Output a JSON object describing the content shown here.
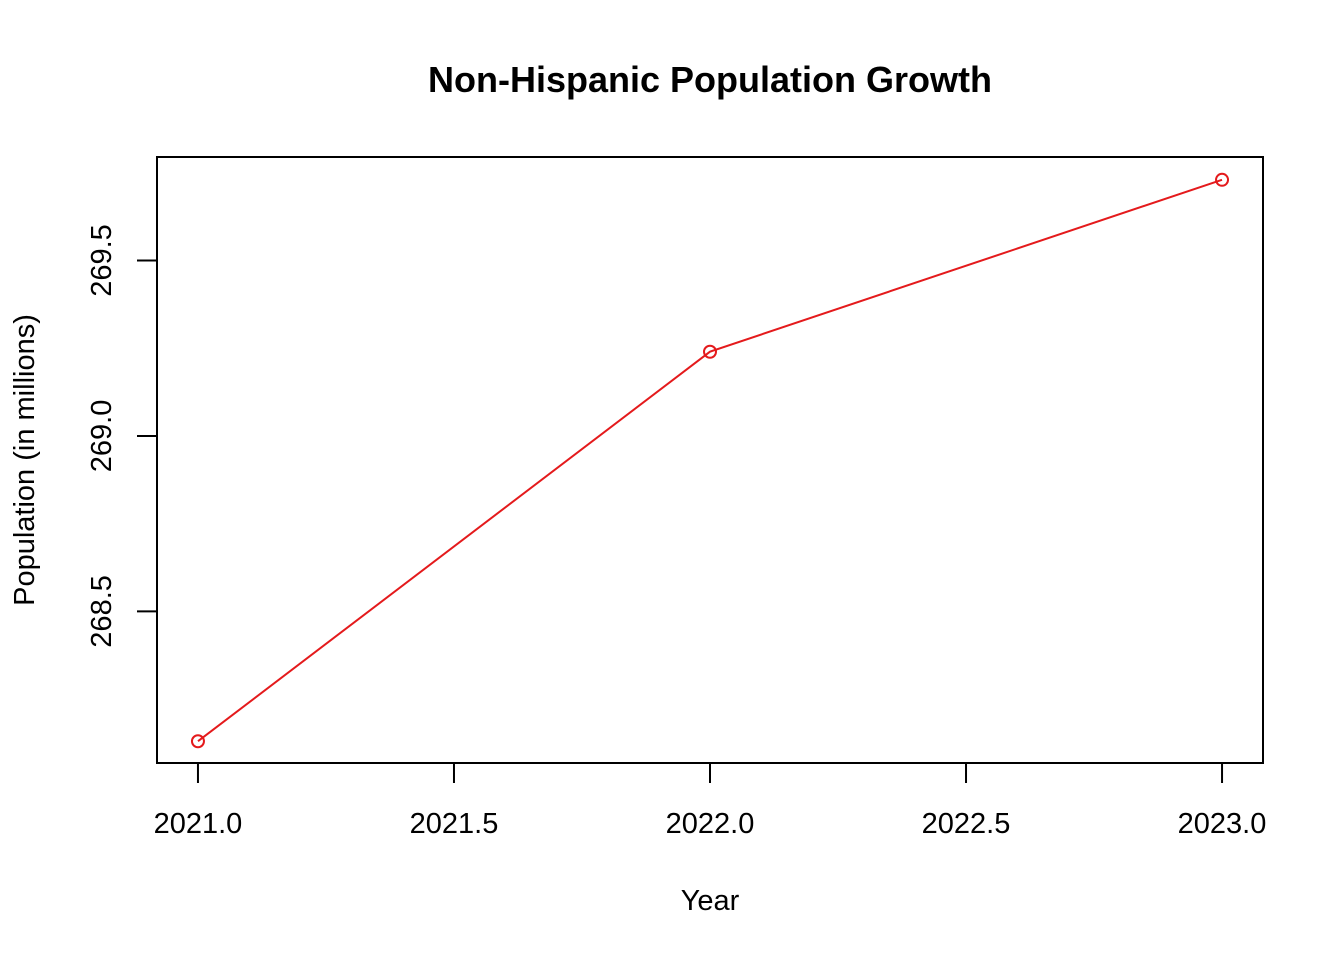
{
  "chart_data": {
    "type": "line",
    "title": "Non-Hispanic Population Growth",
    "xlabel": "Year",
    "ylabel": "Population (in millions)",
    "x": [
      2021,
      2022,
      2023
    ],
    "series": [
      {
        "values": [
          268.13,
          269.24,
          269.73
        ],
        "color": "#e41a1c",
        "marker": "open-circle"
      }
    ],
    "x_ticks": [
      "2021.0",
      "2021.5",
      "2022.0",
      "2022.5",
      "2023.0"
    ],
    "y_ticks": [
      "268.5",
      "269.0",
      "269.5"
    ],
    "xlim": [
      2020.92,
      2023.08
    ],
    "ylim": [
      268.068,
      269.795
    ],
    "grid": false,
    "legend": "none"
  }
}
